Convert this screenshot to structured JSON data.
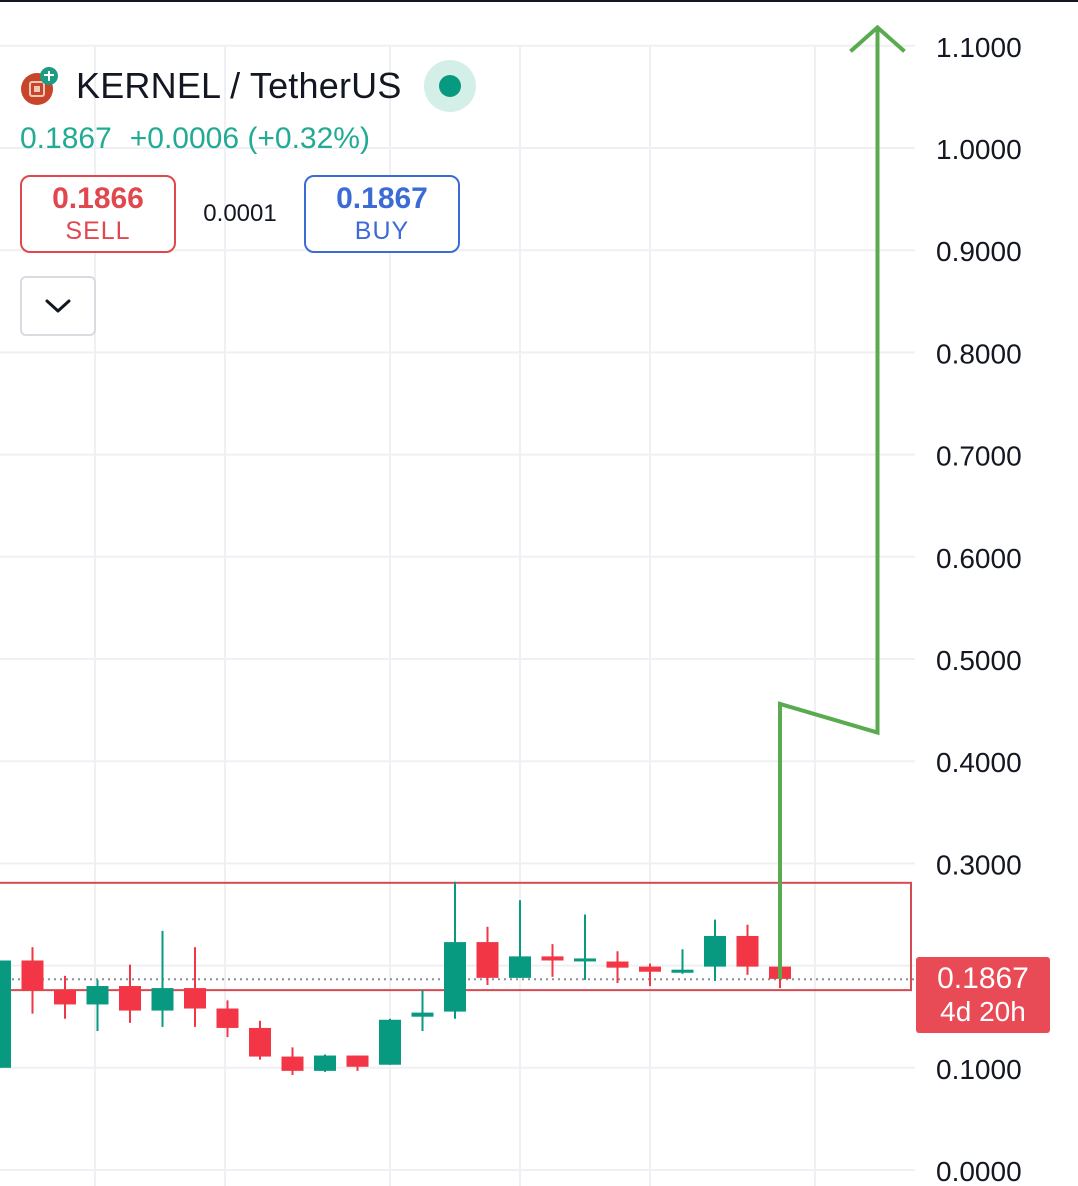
{
  "header": {
    "symbol": "KERNEL / TetherUS",
    "last_price": "0.1867",
    "change": "+0.0006 (+0.32%)"
  },
  "trade": {
    "sell_price": "0.1866",
    "sell_label": "SELL",
    "spread": "0.0001",
    "buy_price": "0.1867",
    "buy_label": "BUY"
  },
  "price_tag": {
    "price": "0.1867",
    "countdown": "4d 20h"
  },
  "colors": {
    "up": "#089981",
    "down": "#f23645",
    "arrow": "#5aaa4f",
    "box": "#d84a52",
    "grid": "#eef0f3"
  },
  "chart_data": {
    "type": "candlestick",
    "y_axis": {
      "ticks": [
        "0.0000",
        "0.1000",
        "0.2000",
        "0.3000",
        "0.4000",
        "0.5000",
        "0.6000",
        "0.7000",
        "0.8000",
        "0.9000",
        "1.0000",
        "1.1000"
      ],
      "min": 0,
      "max": 1.1
    },
    "candles": [
      {
        "o": 0.1,
        "h": 0.205,
        "l": 0.1,
        "c": 0.205
      },
      {
        "o": 0.205,
        "h": 0.218,
        "l": 0.153,
        "c": 0.176
      },
      {
        "o": 0.176,
        "h": 0.19,
        "l": 0.148,
        "c": 0.162
      },
      {
        "o": 0.162,
        "h": 0.186,
        "l": 0.136,
        "c": 0.18
      },
      {
        "o": 0.18,
        "h": 0.201,
        "l": 0.144,
        "c": 0.156
      },
      {
        "o": 0.156,
        "h": 0.234,
        "l": 0.14,
        "c": 0.178
      },
      {
        "o": 0.178,
        "h": 0.218,
        "l": 0.14,
        "c": 0.158
      },
      {
        "o": 0.158,
        "h": 0.166,
        "l": 0.13,
        "c": 0.139
      },
      {
        "o": 0.139,
        "h": 0.146,
        "l": 0.108,
        "c": 0.111
      },
      {
        "o": 0.111,
        "h": 0.12,
        "l": 0.093,
        "c": 0.097
      },
      {
        "o": 0.097,
        "h": 0.113,
        "l": 0.096,
        "c": 0.112
      },
      {
        "o": 0.112,
        "h": 0.112,
        "l": 0.097,
        "c": 0.101
      },
      {
        "o": 0.103,
        "h": 0.148,
        "l": 0.103,
        "c": 0.147
      },
      {
        "o": 0.15,
        "h": 0.176,
        "l": 0.136,
        "c": 0.154
      },
      {
        "o": 0.155,
        "h": 0.282,
        "l": 0.148,
        "c": 0.223
      },
      {
        "o": 0.223,
        "h": 0.238,
        "l": 0.181,
        "c": 0.188
      },
      {
        "o": 0.188,
        "h": 0.264,
        "l": 0.188,
        "c": 0.209
      },
      {
        "o": 0.209,
        "h": 0.221,
        "l": 0.189,
        "c": 0.205
      },
      {
        "o": 0.206,
        "h": 0.25,
        "l": 0.186,
        "c": 0.207
      },
      {
        "o": 0.204,
        "h": 0.214,
        "l": 0.183,
        "c": 0.198
      },
      {
        "o": 0.199,
        "h": 0.202,
        "l": 0.18,
        "c": 0.194
      },
      {
        "o": 0.193,
        "h": 0.216,
        "l": 0.192,
        "c": 0.196
      },
      {
        "o": 0.199,
        "h": 0.245,
        "l": 0.185,
        "c": 0.229
      },
      {
        "o": 0.229,
        "h": 0.24,
        "l": 0.191,
        "c": 0.199
      },
      {
        "o": 0.199,
        "h": 0.202,
        "l": 0.178,
        "c": 0.187
      }
    ],
    "last_price": 0.1867,
    "consolidation_box": {
      "start_index": 0,
      "end_index": 27,
      "low": 0.176,
      "high": 0.281
    },
    "arrow_path": [
      {
        "i": 24,
        "price": 0.187
      },
      {
        "i": 24,
        "price": 0.456
      },
      {
        "i": 27,
        "price": 0.428
      },
      {
        "i": 27,
        "price": 1.118
      }
    ]
  }
}
